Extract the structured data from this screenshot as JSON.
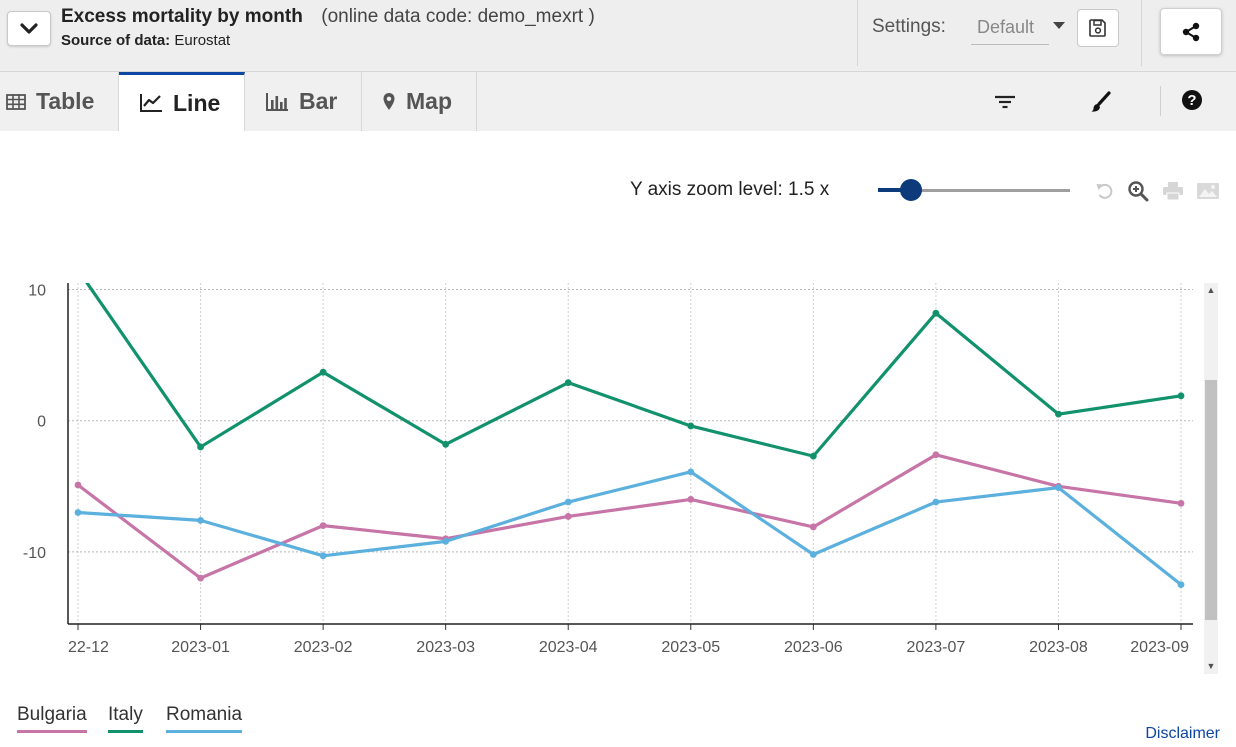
{
  "header": {
    "title": "Excess mortality by month",
    "data_code": "(online data code: demo_mexrt )",
    "source_label": "Source of data:",
    "source_value": "Eurostat",
    "settings_label": "Settings:",
    "settings_value": "Default"
  },
  "tabs": [
    {
      "label": "Table",
      "icon": "table-icon",
      "active": false
    },
    {
      "label": "Line",
      "icon": "line-chart-icon",
      "active": true
    },
    {
      "label": "Bar",
      "icon": "bar-chart-icon",
      "active": false
    },
    {
      "label": "Map",
      "icon": "map-pin-icon",
      "active": false
    }
  ],
  "toolbar_icons": [
    "filter-icon",
    "brush-icon",
    "help-icon"
  ],
  "zoom": {
    "label": "Y axis zoom level: 1.5 x",
    "level": 1.5,
    "slider_fraction": 0.17
  },
  "chart_icons": [
    "undo-icon",
    "zoom-in-icon",
    "print-icon",
    "image-icon"
  ],
  "chart_data": {
    "type": "line",
    "title": "",
    "xlabel": "",
    "ylabel": "",
    "categories": [
      "22-12",
      "2023-01",
      "2023-02",
      "2023-03",
      "2023-04",
      "2023-05",
      "2023-06",
      "2023-07",
      "2023-08",
      "2023-09"
    ],
    "ylim": [
      -15.5,
      10.5
    ],
    "yticks": [
      10,
      0,
      -10
    ],
    "grid": true,
    "legend_position": "bottom-left",
    "series": [
      {
        "name": "Bulgaria",
        "color": "#c774a7",
        "values": [
          -4.9,
          -12.0,
          -8.0,
          -9.0,
          -7.3,
          -6.0,
          -8.1,
          -2.6,
          -5.0,
          -6.3
        ]
      },
      {
        "name": "Italy",
        "color": "#11926c",
        "values": [
          11.5,
          -2.0,
          3.7,
          -1.8,
          2.9,
          -0.4,
          -2.7,
          8.2,
          0.5,
          1.9
        ]
      },
      {
        "name": "Romania",
        "color": "#5bb0dd",
        "values": [
          -7.0,
          -7.6,
          -10.3,
          -9.2,
          -6.2,
          -3.9,
          -10.2,
          -6.2,
          -5.1,
          -12.5
        ]
      }
    ]
  },
  "disclaimer": "Disclaimer"
}
